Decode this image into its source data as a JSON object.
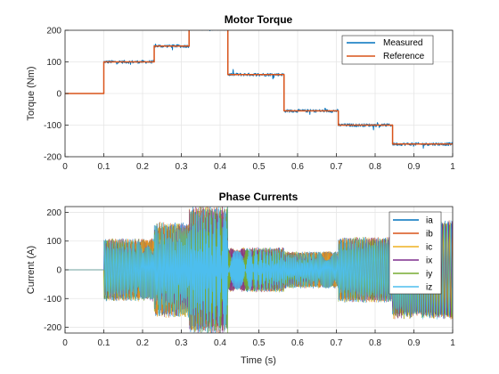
{
  "chart_data": [
    {
      "type": "line",
      "title": "Motor Torque",
      "xlabel": "",
      "ylabel": "Torque (Nm)",
      "xlim": [
        0,
        1
      ],
      "ylim": [
        -200,
        200
      ],
      "xticks": [
        0,
        0.1,
        0.2,
        0.3,
        0.4,
        0.5,
        0.6,
        0.7,
        0.8,
        0.9,
        1
      ],
      "xtick_labels": [
        "0",
        "0.1",
        "0.2",
        "0.3",
        "0.4",
        "0.5",
        "0.6",
        "0.7",
        "0.8",
        "0.9",
        "1"
      ],
      "yticks": [
        -200,
        -100,
        0,
        100,
        200
      ],
      "ytick_labels": [
        "-200",
        "-100",
        "0",
        "100",
        "200"
      ],
      "grid": true,
      "legend_position": "top-right",
      "series": [
        {
          "name": "Measured",
          "color": "#0072BD",
          "noise_amplitude": 10,
          "steps": [
            {
              "x0": 0,
              "x1": 0.1,
              "y": 0
            },
            {
              "x0": 0.1,
              "x1": 0.23,
              "y": 100
            },
            {
              "x0": 0.23,
              "x1": 0.32,
              "y": 150
            },
            {
              "x0": 0.32,
              "x1": 0.42,
              "y": 205
            },
            {
              "x0": 0.42,
              "x1": 0.565,
              "y": 60
            },
            {
              "x0": 0.565,
              "x1": 0.705,
              "y": -55
            },
            {
              "x0": 0.705,
              "x1": 0.845,
              "y": -100
            },
            {
              "x0": 0.845,
              "x1": 1,
              "y": -160
            }
          ]
        },
        {
          "name": "Reference",
          "color": "#D95319",
          "noise_amplitude": 0,
          "steps": [
            {
              "x0": 0,
              "x1": 0.1,
              "y": 0
            },
            {
              "x0": 0.1,
              "x1": 0.23,
              "y": 100
            },
            {
              "x0": 0.23,
              "x1": 0.32,
              "y": 150
            },
            {
              "x0": 0.32,
              "x1": 0.42,
              "y": 205
            },
            {
              "x0": 0.42,
              "x1": 0.565,
              "y": 60
            },
            {
              "x0": 0.565,
              "x1": 0.705,
              "y": -55
            },
            {
              "x0": 0.705,
              "x1": 0.845,
              "y": -100
            },
            {
              "x0": 0.845,
              "x1": 1,
              "y": -160
            }
          ]
        }
      ]
    },
    {
      "type": "line",
      "title": "Phase Currents",
      "xlabel": "Time (s)",
      "ylabel": "Current (A)",
      "xlim": [
        0,
        1
      ],
      "ylim": [
        -220,
        220
      ],
      "xticks": [
        0,
        0.1,
        0.2,
        0.3,
        0.4,
        0.5,
        0.6,
        0.7,
        0.8,
        0.9,
        1
      ],
      "xtick_labels": [
        "0",
        "0.1",
        "0.2",
        "0.3",
        "0.4",
        "0.5",
        "0.6",
        "0.7",
        "0.8",
        "0.9",
        "1"
      ],
      "yticks": [
        -200,
        -100,
        0,
        100,
        200
      ],
      "ytick_labels": [
        "-200",
        "-100",
        "0",
        "100",
        "200"
      ],
      "grid": true,
      "legend_position": "top-right",
      "envelope": [
        {
          "x0": 0,
          "x1": 0.1,
          "amplitude": 0
        },
        {
          "x0": 0.1,
          "x1": 0.23,
          "amplitude": 105
        },
        {
          "x0": 0.23,
          "x1": 0.32,
          "amplitude": 160
        },
        {
          "x0": 0.32,
          "x1": 0.42,
          "amplitude": 215
        },
        {
          "x0": 0.42,
          "x1": 0.565,
          "amplitude": 75
        },
        {
          "x0": 0.565,
          "x1": 0.705,
          "amplitude": 62
        },
        {
          "x0": 0.705,
          "x1": 0.845,
          "amplitude": 110
        },
        {
          "x0": 0.845,
          "x1": 1,
          "amplitude": 165
        }
      ],
      "series": [
        {
          "name": "ia",
          "color": "#0072BD"
        },
        {
          "name": "ib",
          "color": "#D95319"
        },
        {
          "name": "ic",
          "color": "#EDB120"
        },
        {
          "name": "ix",
          "color": "#7E2F8E"
        },
        {
          "name": "iy",
          "color": "#77AC30"
        },
        {
          "name": "iz",
          "color": "#4DBEEE"
        }
      ]
    }
  ]
}
